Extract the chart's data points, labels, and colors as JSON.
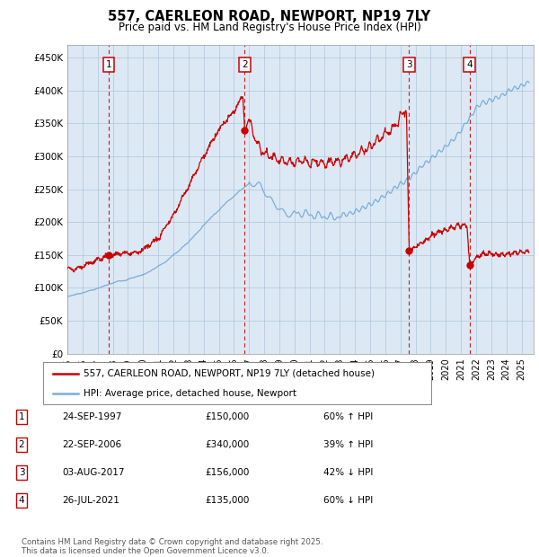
{
  "title": "557, CAERLEON ROAD, NEWPORT, NP19 7LY",
  "subtitle": "Price paid vs. HM Land Registry's House Price Index (HPI)",
  "plot_bg_color": "#dce9f5",
  "ylim": [
    0,
    470000
  ],
  "yticks": [
    0,
    50000,
    100000,
    150000,
    200000,
    250000,
    300000,
    350000,
    400000,
    450000
  ],
  "sale_labels": [
    "1",
    "2",
    "3",
    "4"
  ],
  "sale_dates": [
    1997.73,
    2006.72,
    2017.58,
    2021.57
  ],
  "sale_prices": [
    150000,
    340000,
    156000,
    135000
  ],
  "legend_line1": "557, CAERLEON ROAD, NEWPORT, NP19 7LY (detached house)",
  "legend_line2": "HPI: Average price, detached house, Newport",
  "table_rows": [
    [
      "1",
      "24-SEP-1997",
      "£150,000",
      "60% ↑ HPI"
    ],
    [
      "2",
      "22-SEP-2006",
      "£340,000",
      "39% ↑ HPI"
    ],
    [
      "3",
      "03-AUG-2017",
      "£156,000",
      "42% ↓ HPI"
    ],
    [
      "4",
      "26-JUL-2021",
      "£135,000",
      "60% ↓ HPI"
    ]
  ],
  "footer": "Contains HM Land Registry data © Crown copyright and database right 2025.\nThis data is licensed under the Open Government Licence v3.0.",
  "red_color": "#cc0000",
  "blue_color": "#7aaddb",
  "vline_color": "#cc0000",
  "grid_color": "#b0c4d8",
  "xmin": 1995.0,
  "xmax": 2025.8
}
